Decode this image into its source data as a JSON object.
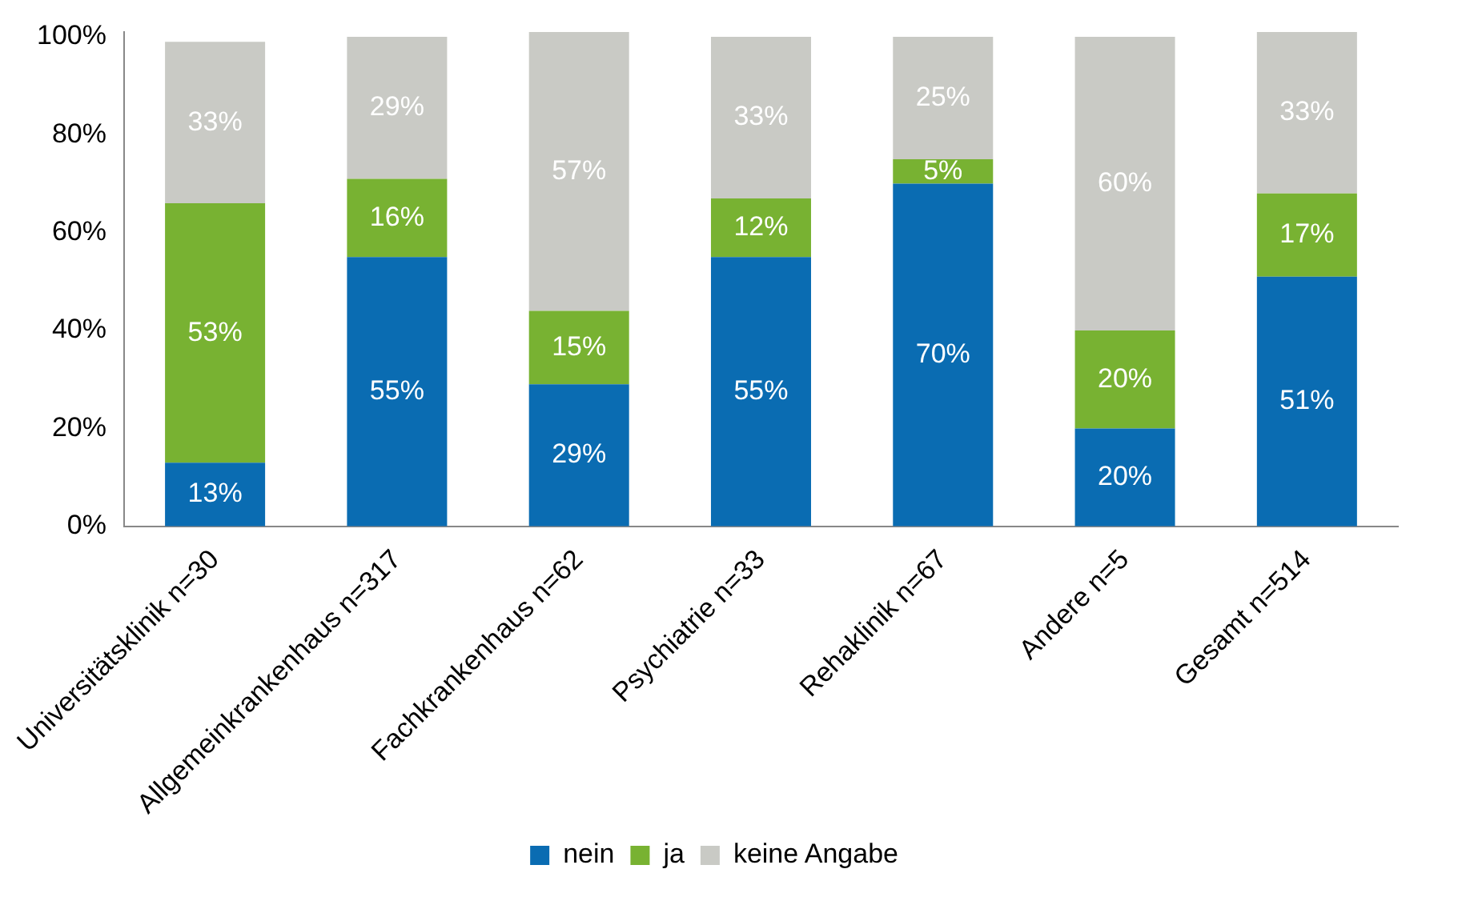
{
  "chart_data": {
    "type": "bar",
    "stacked": true,
    "legend": "bottom",
    "grid": false,
    "categories": [
      "Universitätsklinik n=30",
      "Allgemeinkrankenhaus n=317",
      "Fachkrankenhaus n=62",
      "Psychiatrie n=33",
      "Rehaklinik n=67",
      "Andere n=5",
      "Gesamt n=514"
    ],
    "series": [
      {
        "name": "nein",
        "color": "#0a6cb2",
        "values": [
          13,
          55,
          29,
          55,
          70,
          20,
          51
        ],
        "value_labels": [
          "13%",
          "55%",
          "29%",
          "55%",
          "70%",
          "20%",
          "51%"
        ]
      },
      {
        "name": "ja",
        "color": "#78b232",
        "values": [
          53,
          16,
          15,
          12,
          5,
          20,
          17
        ],
        "value_labels": [
          "53%",
          "16%",
          "15%",
          "12%",
          "5%",
          "20%",
          "17%"
        ]
      },
      {
        "name": "keine Angabe",
        "color": "#c9cac5",
        "values": [
          33,
          29,
          57,
          33,
          25,
          60,
          33
        ],
        "value_labels": [
          "33%",
          "29%",
          "57%",
          "33%",
          "25%",
          "60%",
          "33%"
        ]
      }
    ],
    "ylim": [
      0,
      101
    ],
    "yticks": [
      {
        "value": 0,
        "label": "0%"
      },
      {
        "value": 20,
        "label": "20%"
      },
      {
        "value": 40,
        "label": "40%"
      },
      {
        "value": 60,
        "label": "60%"
      },
      {
        "value": 80,
        "label": "80%"
      },
      {
        "value": 100,
        "label": "100%"
      }
    ]
  }
}
